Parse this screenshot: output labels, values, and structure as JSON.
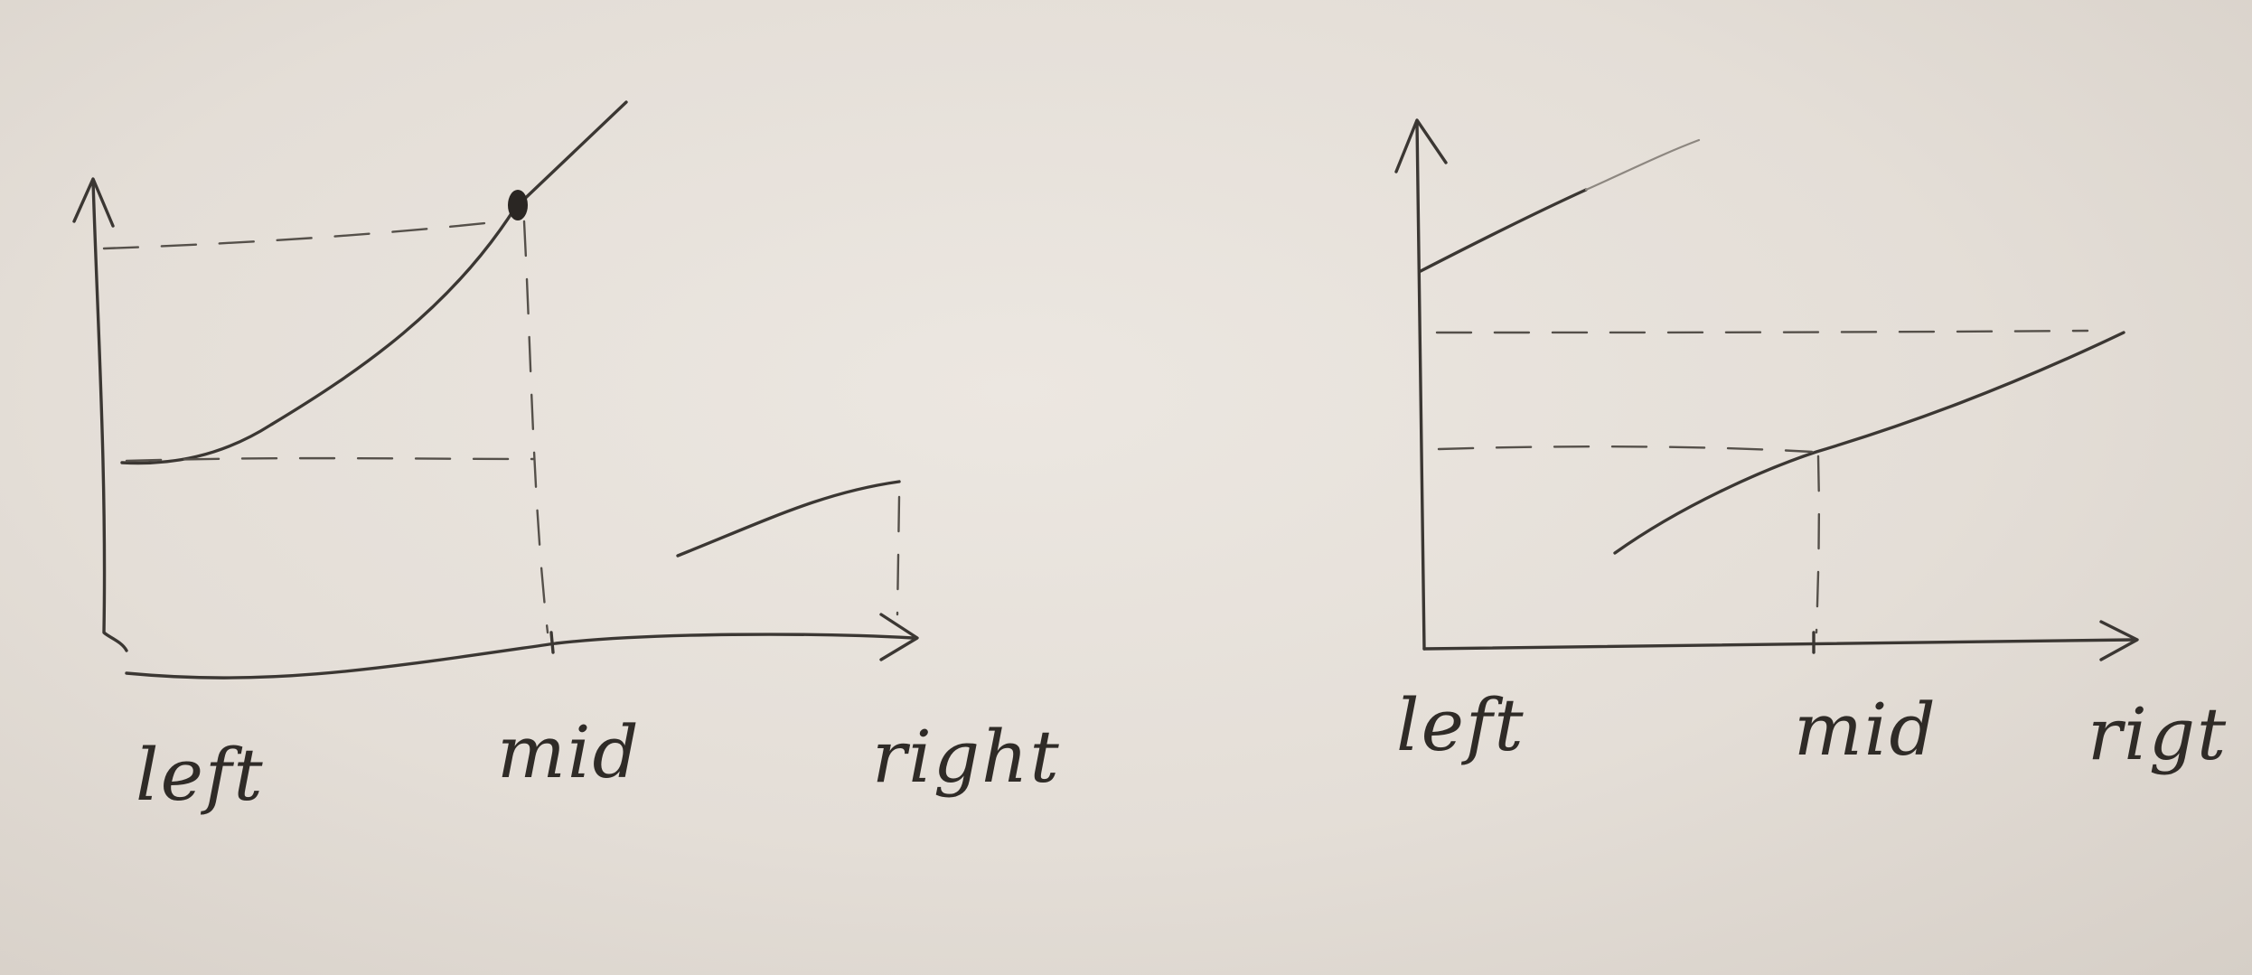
{
  "left_sketch": {
    "labels": {
      "left": "left",
      "mid": "mid",
      "right": "right"
    }
  },
  "right_sketch": {
    "labels": {
      "left": "left",
      "mid": "mid",
      "right": "rigt"
    }
  }
}
